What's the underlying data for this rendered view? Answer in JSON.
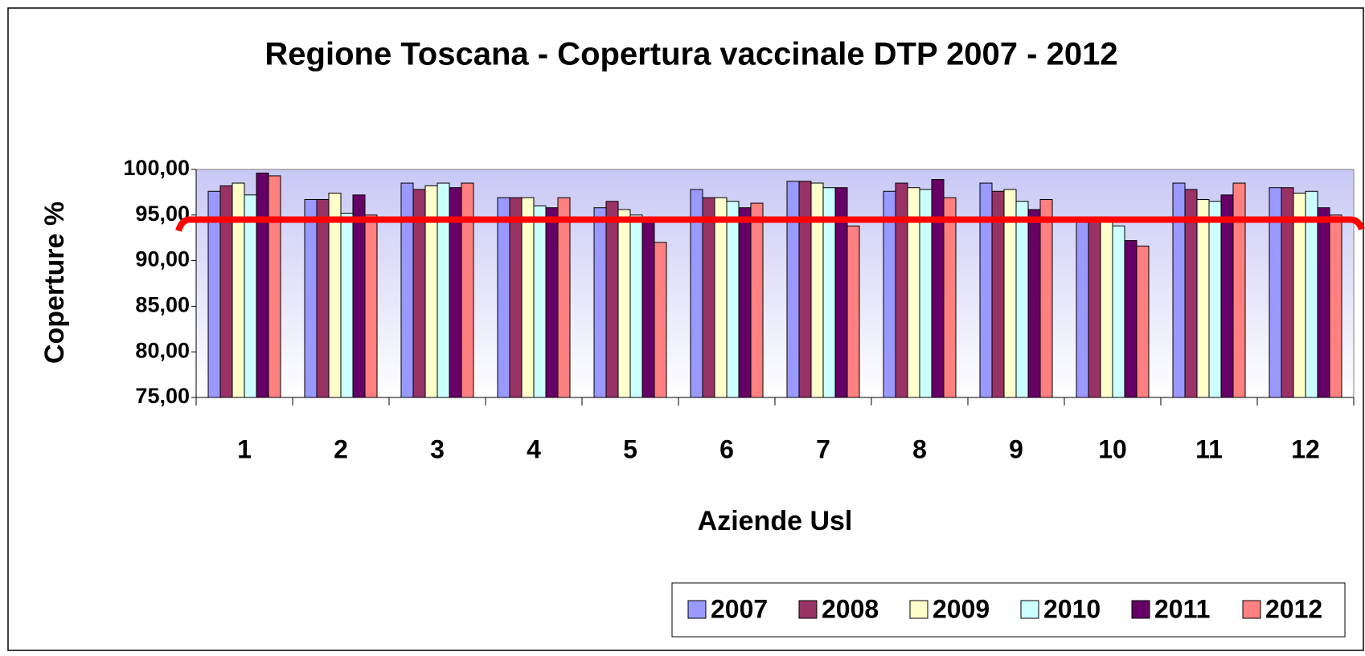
{
  "chart_data": {
    "type": "bar",
    "title": "Regione Toscana - Copertura vaccinale DTP 2007 - 2012",
    "x_label": "Aziende Usl",
    "y_label": "Coperture %",
    "categories": [
      "1",
      "2",
      "3",
      "4",
      "5",
      "6",
      "7",
      "8",
      "9",
      "10",
      "11",
      "12"
    ],
    "series": [
      {
        "name": "2007",
        "color": "#9999ff",
        "values": [
          97.6,
          96.7,
          98.5,
          96.9,
          95.8,
          97.8,
          98.7,
          97.6,
          98.5,
          94.8,
          98.5,
          98.0
        ]
      },
      {
        "name": "2008",
        "color": "#993366",
        "values": [
          98.2,
          96.7,
          97.8,
          96.9,
          96.5,
          96.9,
          98.7,
          98.5,
          97.6,
          94.5,
          97.8,
          98.0
        ]
      },
      {
        "name": "2009",
        "color": "#ffffcc",
        "values": [
          98.5,
          97.4,
          98.2,
          96.9,
          95.6,
          96.9,
          98.5,
          98.0,
          97.8,
          94.5,
          96.7,
          97.4
        ]
      },
      {
        "name": "2010",
        "color": "#ccffff",
        "values": [
          97.2,
          95.2,
          98.5,
          96.0,
          95.0,
          96.5,
          98.0,
          97.8,
          96.5,
          93.8,
          96.5,
          97.6
        ]
      },
      {
        "name": "2011",
        "color": "#660066",
        "values": [
          99.6,
          97.2,
          98.0,
          95.8,
          94.8,
          95.8,
          98.0,
          98.9,
          95.6,
          92.2,
          97.2,
          95.8
        ]
      },
      {
        "name": "2012",
        "color": "#ff8080",
        "values": [
          99.3,
          95.0,
          98.5,
          96.9,
          92.0,
          96.3,
          93.8,
          96.9,
          96.7,
          91.6,
          98.5,
          95.0
        ]
      }
    ],
    "ylim": [
      75,
      100
    ],
    "yticks": [
      {
        "value": 75,
        "label": "75,00"
      },
      {
        "value": 80,
        "label": "80,00"
      },
      {
        "value": 85,
        "label": "85,00"
      },
      {
        "value": 90,
        "label": "90,00"
      },
      {
        "value": 95,
        "label": "95,00"
      },
      {
        "value": 100,
        "label": "100,00"
      }
    ],
    "threshold": {
      "value": 94.5,
      "color": "#ff0000"
    },
    "legend": "bottom-right"
  }
}
